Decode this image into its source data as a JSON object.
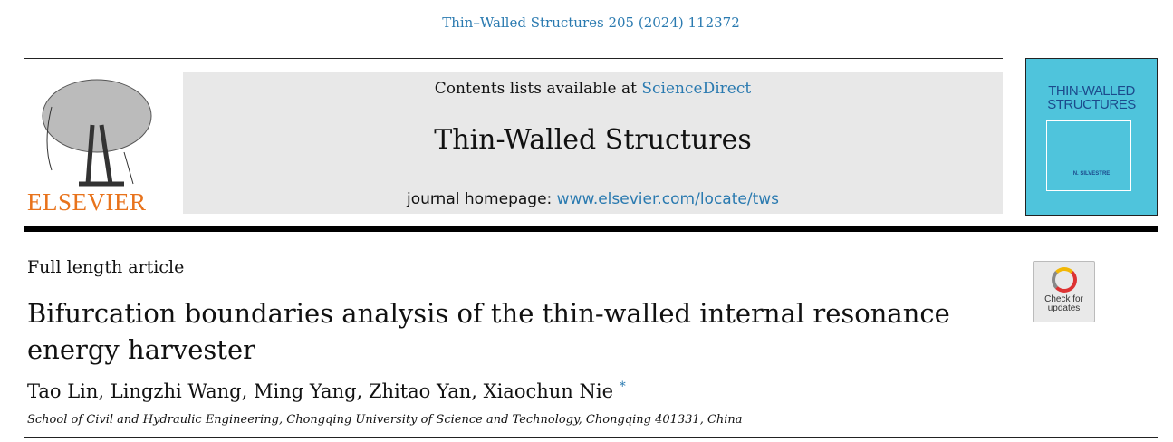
{
  "citation": "Thin–Walled Structures 205 (2024) 112372",
  "masthead": {
    "contents_prefix": "Contents lists available at ",
    "contents_link": "ScienceDirect",
    "journal_name": "Thin-Walled Structures",
    "homepage_prefix": "journal homepage: ",
    "homepage_link": "www.elsevier.com/locate/tws",
    "publisher_logo": "ELSEVIER",
    "cover_title": "THIN-WALLED STRUCTURES",
    "cover_editor": "N. SILVESTRE"
  },
  "article": {
    "type": "Full length article",
    "title": "Bifurcation boundaries analysis of the thin-walled internal resonance energy harvester",
    "authors": "Tao Lin, Lingzhi Wang, Ming Yang, Zhitao Yan, Xiaochun Nie",
    "corresponding_mark": "*",
    "affiliation": "School of Civil and Hydraulic Engineering, Chongqing University of Science and Technology, Chongqing 401331, China",
    "check_updates": "Check for updates"
  },
  "colors": {
    "link": "#2a7ab0",
    "elsevier": "#e8731c",
    "cover": "#4fc4dc"
  }
}
